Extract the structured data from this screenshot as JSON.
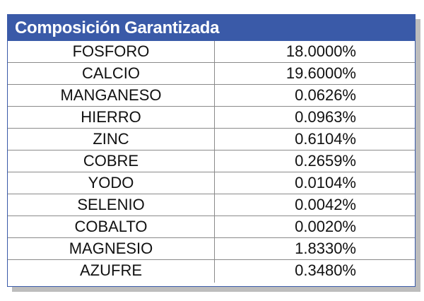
{
  "table": {
    "title": "Composición Garantizada",
    "colors": {
      "header_bg": "#3a5aa8",
      "header_text": "#ffffff",
      "border": "#8a8a8a"
    },
    "rows": [
      {
        "name": "FOSFORO",
        "value": "18.0000%"
      },
      {
        "name": "CALCIO",
        "value": "19.6000%"
      },
      {
        "name": "MANGANESO",
        "value": "0.0626%"
      },
      {
        "name": "HIERRO",
        "value": "0.0963%"
      },
      {
        "name": "ZINC",
        "value": "0.6104%"
      },
      {
        "name": "COBRE",
        "value": "0.2659%"
      },
      {
        "name": "YODO",
        "value": "0.0104%"
      },
      {
        "name": "SELENIO",
        "value": "0.0042%"
      },
      {
        "name": "COBALTO",
        "value": "0.0020%"
      },
      {
        "name": "MAGNESIO",
        "value": "1.8330%"
      },
      {
        "name": "AZUFRE",
        "value": "0.3480%"
      }
    ]
  }
}
